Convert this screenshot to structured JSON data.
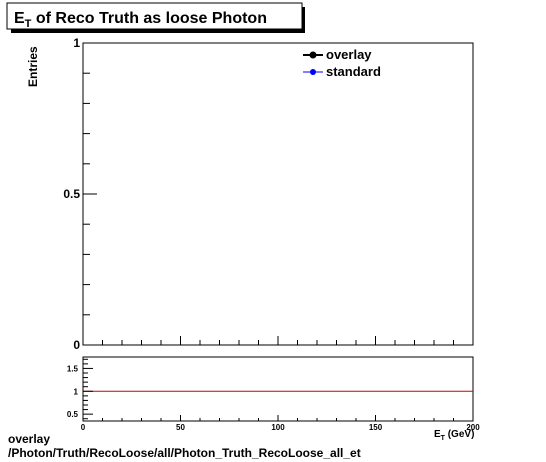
{
  "chart_data": {
    "type": "line",
    "title_main": "E",
    "title_sub": "T",
    "title_rest": " of Reco Truth as loose Photon",
    "ylabel": "Entries",
    "xlabel_main": "E",
    "xlabel_sub": "T",
    "xlabel_unit": " (GeV)",
    "xlim": [
      0,
      200
    ],
    "ylim": [
      0,
      1
    ],
    "y_ticks": [
      {
        "v": 0,
        "label": "0"
      },
      {
        "v": 0.5,
        "label": "0.5"
      },
      {
        "v": 1,
        "label": "1"
      }
    ],
    "series": [
      {
        "name": "overlay",
        "color": "#000000",
        "x": [],
        "y": []
      },
      {
        "name": "standard",
        "color": "#0000ff",
        "x": [],
        "y": []
      }
    ],
    "legend": "top-right",
    "ratio": {
      "ylim": [
        0.35,
        1.75
      ],
      "x_ticks": [
        {
          "v": 0,
          "label": "0"
        },
        {
          "v": 50,
          "label": "50"
        },
        {
          "v": 100,
          "label": "100"
        },
        {
          "v": 150,
          "label": "150"
        },
        {
          "v": 200,
          "label": "200"
        }
      ],
      "y_ticks": [
        {
          "v": 0.5,
          "label": "0.5"
        },
        {
          "v": 1,
          "label": "1"
        },
        {
          "v": 1.5,
          "label": "1.5"
        }
      ],
      "reference_line": {
        "value": 1,
        "color": "#cc0000"
      }
    }
  },
  "footer": {
    "line1": "overlay",
    "line2": "/Photon/Truth/RecoLoose/all/Photon_Truth_RecoLoose_all_et"
  }
}
